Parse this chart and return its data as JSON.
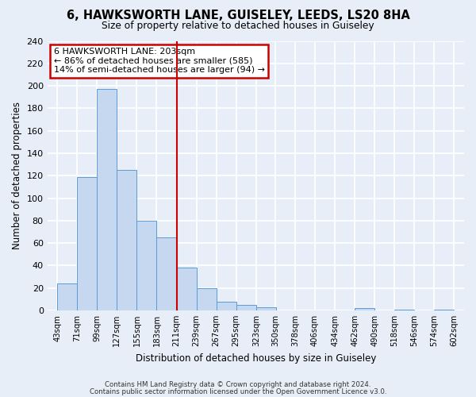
{
  "title": "6, HAWKSWORTH LANE, GUISELEY, LEEDS, LS20 8HA",
  "subtitle": "Size of property relative to detached houses in Guiseley",
  "xlabel": "Distribution of detached houses by size in Guiseley",
  "ylabel": "Number of detached properties",
  "bins": [
    43,
    71,
    99,
    127,
    155,
    183,
    211,
    239,
    267,
    295,
    323,
    350,
    378,
    406,
    434,
    462,
    490,
    518,
    546,
    574,
    602
  ],
  "counts": [
    24,
    119,
    197,
    125,
    80,
    65,
    38,
    20,
    8,
    5,
    3,
    0,
    0,
    0,
    0,
    2,
    0,
    1,
    0,
    1
  ],
  "bar_color": "#c5d8ef",
  "bar_edge_color": "#5b9bd5",
  "red_line_x": 211,
  "annotation_title": "6 HAWKSWORTH LANE: 203sqm",
  "annotation_line1": "← 86% of detached houses are smaller (585)",
  "annotation_line2": "14% of semi-detached houses are larger (94) →",
  "annotation_box_color": "#ffffff",
  "annotation_box_edge_color": "#cc0000",
  "ylim": [
    0,
    240
  ],
  "yticks": [
    0,
    20,
    40,
    60,
    80,
    100,
    120,
    140,
    160,
    180,
    200,
    220,
    240
  ],
  "footer1": "Contains HM Land Registry data © Crown copyright and database right 2024.",
  "footer2": "Contains public sector information licensed under the Open Government Licence v3.0.",
  "background_color": "#e8eef7",
  "plot_bg_color": "#e8eef7",
  "grid_color": "#ffffff"
}
